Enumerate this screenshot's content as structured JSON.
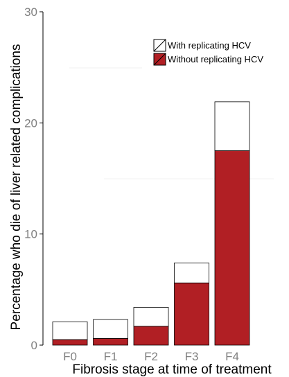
{
  "chart_data": {
    "type": "bar",
    "stacked": true,
    "categories": [
      "F0",
      "F1",
      "F2",
      "F3",
      "F4"
    ],
    "series": [
      {
        "name": "Without replicating HCV",
        "values": [
          0.5,
          0.6,
          1.7,
          5.6,
          17.5
        ],
        "color": "#B11F24"
      },
      {
        "name": "With replicating HCV",
        "values": [
          1.6,
          1.7,
          1.7,
          1.8,
          4.4
        ],
        "color": "#FFFFFF"
      }
    ],
    "xlabel": "Fibrosis stage at time of treatment",
    "ylabel": "Percentage who die of liver related complications",
    "ylim": [
      0,
      30
    ],
    "yticks": [
      0,
      10,
      20,
      30
    ],
    "grid": false,
    "legend_position": "top-right"
  }
}
